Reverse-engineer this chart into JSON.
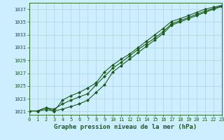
{
  "title": "Graphe pression niveau de la mer (hPa)",
  "background_color": "#cceeff",
  "grid_color": "#aacccc",
  "line_color": "#1a5c1a",
  "x_values": [
    0,
    1,
    2,
    3,
    4,
    5,
    6,
    7,
    8,
    9,
    10,
    11,
    12,
    13,
    14,
    15,
    16,
    17,
    18,
    19,
    20,
    21,
    22,
    23
  ],
  "line1": [
    1021.1,
    1021.1,
    1021.3,
    1021.1,
    1021.4,
    1021.8,
    1022.2,
    1022.8,
    1024.0,
    1025.2,
    1027.2,
    1028.2,
    1029.2,
    1030.2,
    1031.2,
    1032.2,
    1033.2,
    1034.5,
    1035.0,
    1035.5,
    1036.0,
    1036.5,
    1037.0,
    1037.4
  ],
  "line2": [
    1021.1,
    1021.1,
    1021.6,
    1021.4,
    1022.2,
    1022.8,
    1023.3,
    1023.8,
    1025.2,
    1026.5,
    1027.8,
    1028.7,
    1029.7,
    1030.7,
    1031.6,
    1032.5,
    1033.5,
    1034.7,
    1035.2,
    1035.7,
    1036.2,
    1036.7,
    1037.1,
    1037.5
  ],
  "line3": [
    1021.1,
    1021.1,
    1021.6,
    1021.1,
    1022.8,
    1023.5,
    1024.0,
    1024.7,
    1025.5,
    1027.2,
    1028.3,
    1029.2,
    1030.0,
    1031.0,
    1032.0,
    1033.0,
    1034.0,
    1035.1,
    1035.5,
    1036.0,
    1036.5,
    1037.0,
    1037.3,
    1037.6
  ],
  "ylim": [
    1020.5,
    1038.0
  ],
  "yticks": [
    1021,
    1023,
    1025,
    1027,
    1029,
    1031,
    1033,
    1035,
    1037
  ],
  "xlim": [
    0,
    23
  ],
  "xticks": [
    0,
    1,
    2,
    3,
    4,
    5,
    6,
    7,
    8,
    9,
    10,
    11,
    12,
    13,
    14,
    15,
    16,
    17,
    18,
    19,
    20,
    21,
    22,
    23
  ],
  "tick_fontsize": 5.0,
  "label_fontsize": 6.5,
  "marker": "D",
  "markersize": 2.0,
  "linewidth": 0.8
}
